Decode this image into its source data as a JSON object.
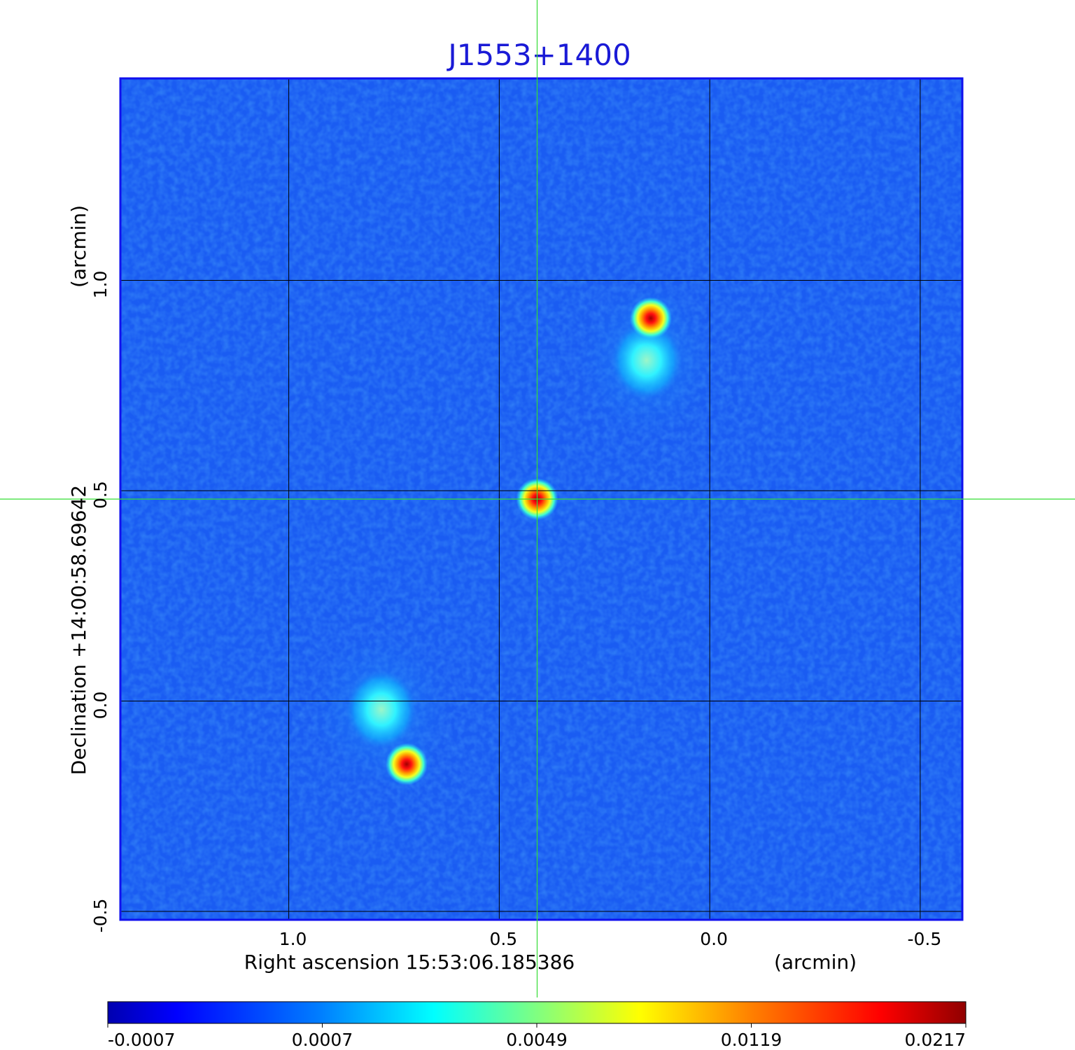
{
  "chart_data": {
    "type": "heatmap",
    "title": "J1553+1400",
    "xlabel": "Right ascension  15:53:06.185386",
    "xlabel_unit": "(arcmin)",
    "ylabel": "Declination  +14:00:58.69642",
    "ylabel_unit": "(arcmin)",
    "xlim": [
      1.4,
      -0.6
    ],
    "ylim": [
      -0.52,
      1.48
    ],
    "x_ticks": [
      1.0,
      0.5,
      0.0,
      -0.5
    ],
    "x_tick_labels": [
      "1.0",
      "0.5",
      "0.0",
      "-0.5"
    ],
    "y_ticks": [
      -0.5,
      0.0,
      0.5,
      1.0
    ],
    "y_tick_labels": [
      "-0.5",
      "0.0",
      "0.5",
      "1.0"
    ],
    "grid": true,
    "crosshair": {
      "x": 0.41,
      "y": 0.48
    },
    "colormap": "jet",
    "colorbar": {
      "range": [
        -0.0007,
        0.0217
      ],
      "tick_labels": [
        "-0.0007",
        "0.0007",
        "0.0049",
        "0.0119",
        "0.0217"
      ],
      "scale": "nonlinear"
    },
    "sources": [
      {
        "x": 0.41,
        "y": 0.48,
        "peak": 0.0217
      },
      {
        "x": 0.14,
        "y": 0.91,
        "peak": 0.0217
      },
      {
        "x": 0.72,
        "y": -0.15,
        "peak": 0.0217
      }
    ],
    "diffuse_lobes": [
      {
        "x": 0.15,
        "y": 0.81
      },
      {
        "x": 0.78,
        "y": -0.02
      }
    ]
  },
  "colors": {
    "title": "#1a1ad6",
    "frame": "#1010ee",
    "grid": "#000000",
    "crosshair": "#33dd33",
    "background_emission": "#1a5cf2"
  }
}
